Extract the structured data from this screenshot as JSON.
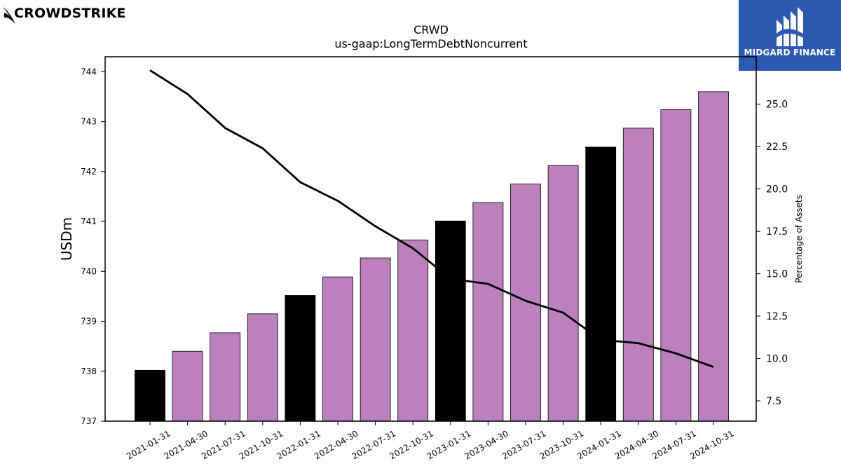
{
  "brand_left": {
    "text": "CROWDSTRIKE",
    "icon": "falcon-icon"
  },
  "brand_right": {
    "text": "MIDGARD FINANCE",
    "icon": "midgard-logo-icon",
    "bg_color": "#2b5ab0"
  },
  "chart_data": {
    "type": "bar+line",
    "title": "CRWD",
    "subtitle": "us-gaap:LongTermDebtNoncurrent",
    "ylabel": "USDm",
    "y2label": "Percentage of Assets",
    "categories": [
      "2021-01-31",
      "2021-04-30",
      "2021-07-31",
      "2021-10-31",
      "2022-01-31",
      "2022-04-30",
      "2022-07-31",
      "2022-10-31",
      "2023-01-31",
      "2023-04-30",
      "2023-07-31",
      "2023-10-31",
      "2024-01-31",
      "2024-04-30",
      "2024-07-31",
      "2024-10-31"
    ],
    "ylim": [
      737,
      744.3
    ],
    "yticks": [
      737,
      738,
      739,
      740,
      741,
      742,
      743,
      744
    ],
    "y2lim": [
      6.3,
      27.8
    ],
    "y2ticks": [
      7.5,
      10.0,
      12.5,
      15.0,
      17.5,
      20.0,
      22.5,
      25.0
    ],
    "series": [
      {
        "type": "bar",
        "values": [
          738.02,
          738.4,
          738.77,
          739.15,
          739.52,
          739.89,
          740.27,
          740.63,
          741.01,
          741.38,
          741.75,
          742.12,
          742.49,
          742.87,
          743.24,
          743.6
        ],
        "highlight_indices": [
          0,
          4,
          8,
          12
        ],
        "color": "#bc80bd",
        "highlight_color": "#000000"
      },
      {
        "type": "line",
        "axis": "right",
        "values": [
          27.0,
          25.6,
          23.6,
          22.4,
          20.4,
          19.3,
          17.8,
          16.5,
          14.7,
          14.4,
          13.4,
          12.7,
          11.1,
          10.9,
          10.3,
          9.5
        ],
        "color": "#000000"
      }
    ],
    "grid": false,
    "legend": "none"
  }
}
